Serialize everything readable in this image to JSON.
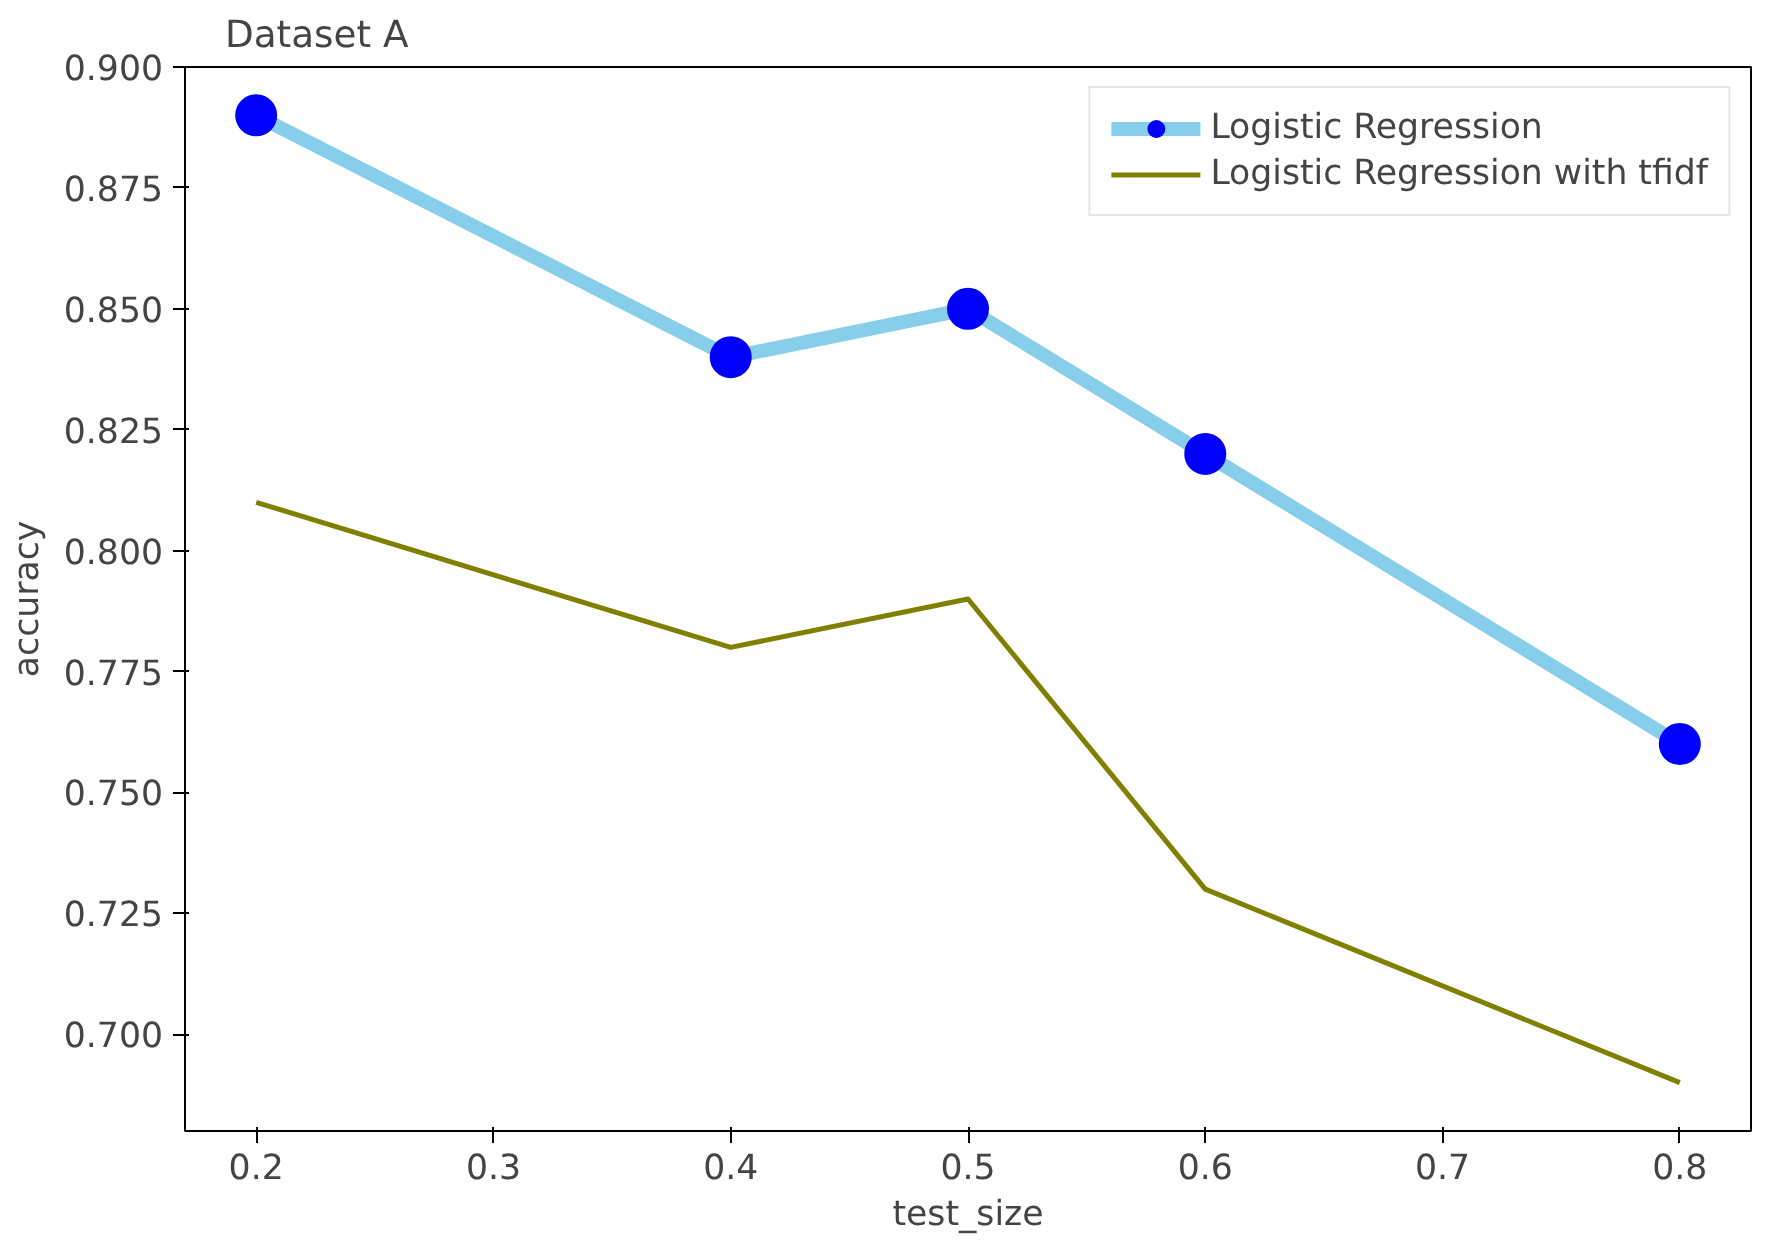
{
  "chart_data": {
    "type": "line",
    "title": "Dataset A",
    "xlabel": "test_size",
    "ylabel": "accuracy",
    "x": [
      0.2,
      0.4,
      0.5,
      0.6,
      0.8
    ],
    "series": [
      {
        "name": "Logistic Regression",
        "color": "#87ceeb",
        "colors": [
          "#0000ff",
          "#0000ff",
          "#0000ff",
          "#0000ff",
          "#0000ff"
        ],
        "marker": "circle",
        "values": [
          0.89,
          0.84,
          0.85,
          0.82,
          0.76
        ]
      },
      {
        "name": "Logistic Regression with tfidf",
        "color": "#808000",
        "marker": "none",
        "values": [
          0.81,
          0.78,
          0.79,
          0.73,
          0.69
        ]
      }
    ],
    "xlim": [
      0.17,
      0.83
    ],
    "xticks": [
      0.2,
      0.3,
      0.4,
      0.5,
      0.6,
      0.7,
      0.8
    ],
    "ylim": [
      0.68,
      0.9
    ],
    "yticks": [
      {
        "value": 0.7,
        "label": "0.700"
      },
      {
        "value": 0.725,
        "label": "0.725"
      },
      {
        "value": 0.75,
        "label": "0.750"
      },
      {
        "value": 0.775,
        "label": "0.775"
      },
      {
        "value": 0.8,
        "label": "0.800"
      },
      {
        "value": 0.825,
        "label": "0.825"
      },
      {
        "value": 0.85,
        "label": "0.850"
      },
      {
        "value": 0.875,
        "label": "0.875"
      },
      {
        "value": 0.9,
        "label": "0.900"
      }
    ],
    "grid": false,
    "legend": "top right",
    "line_style": "solid"
  }
}
